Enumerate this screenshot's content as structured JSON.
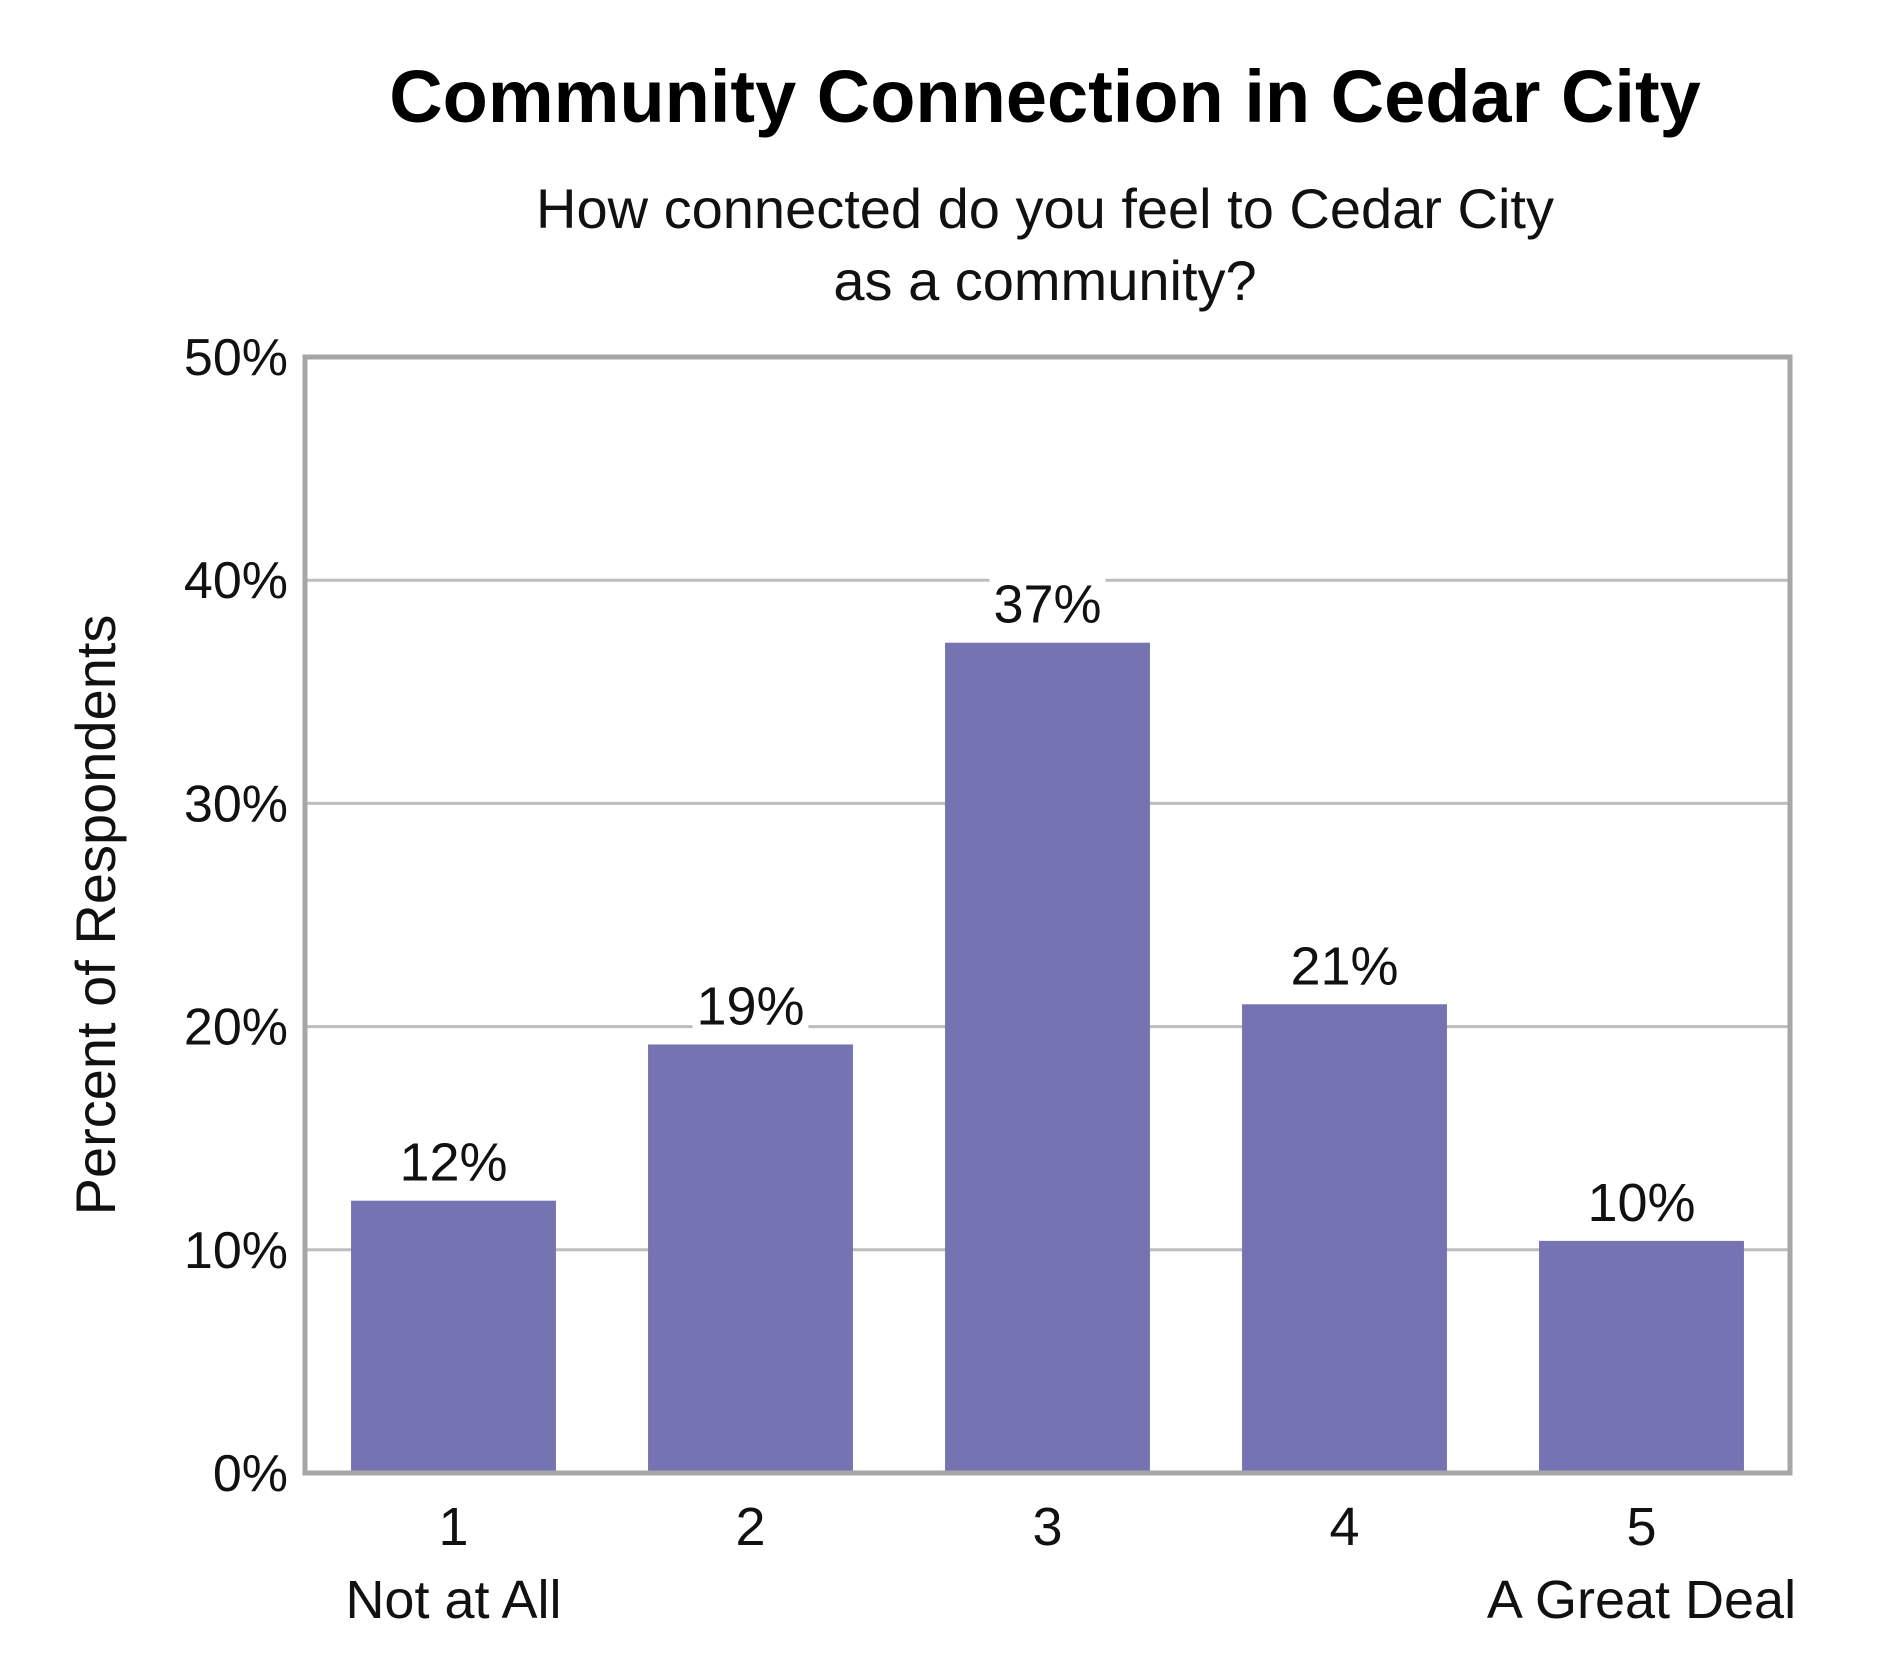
{
  "chart_data": {
    "type": "bar",
    "title": "Community Connection in Cedar City",
    "subtitle": [
      "How connected do you feel to Cedar City",
      "as a community?"
    ],
    "ylabel": "Percent of Respondents",
    "xlabel": "",
    "categories": [
      "1",
      "2",
      "3",
      "4",
      "5"
    ],
    "category_sublabels": [
      "Not at All",
      "",
      "",
      "",
      "A Great Deal"
    ],
    "values": [
      12.2,
      19.2,
      37.2,
      21.0,
      10.4
    ],
    "data_labels": [
      "12%",
      "19%",
      "37%",
      "21%",
      "10%"
    ],
    "ylim": [
      0,
      50
    ],
    "yticks": [
      0,
      10,
      20,
      30,
      40,
      50
    ],
    "ytick_labels": [
      "0%",
      "10%",
      "20%",
      "30%",
      "40%",
      "50%"
    ],
    "grid": true,
    "legend": "none",
    "colors": {
      "bar": "#7673b3",
      "grid": "#bdbdbd",
      "frame": "#a6a6a6",
      "background": "#ffffff"
    }
  }
}
